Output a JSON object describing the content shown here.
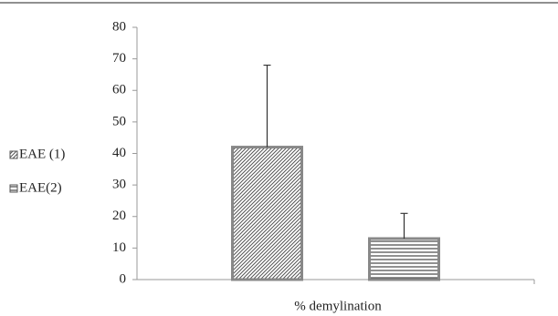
{
  "chart_data": {
    "type": "bar",
    "x_label": "% demylination",
    "categories": [
      "% demylination"
    ],
    "series": [
      {
        "name": "EAE (1)",
        "color": "#555555",
        "hatch": "diagonal",
        "values": [
          42
        ],
        "errors": [
          26
        ]
      },
      {
        "name": "EAE(2)",
        "color": "#555555",
        "hatch": "horizontal",
        "values": [
          13
        ],
        "errors": [
          8
        ]
      }
    ],
    "ylim": [
      0,
      80
    ],
    "yticks": [
      0,
      10,
      20,
      30,
      40,
      50,
      60,
      70,
      80
    ],
    "grid": false,
    "legend": "left"
  }
}
